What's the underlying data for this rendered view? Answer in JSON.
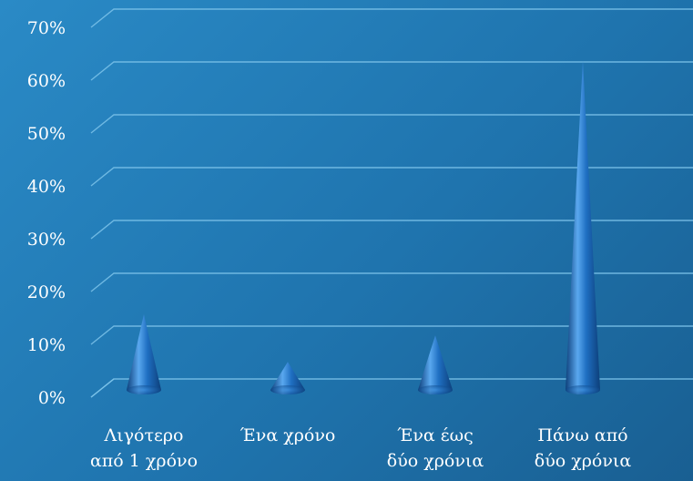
{
  "chart_data": {
    "type": "bar",
    "shape": "cone",
    "categories": [
      [
        "Λιγότερο",
        "από 1 χρόνο"
      ],
      [
        "Ένα χρόνο"
      ],
      [
        "Ένα έως",
        "δύο χρόνια"
      ],
      [
        "Πάνω από",
        "δύο χρόνια"
      ]
    ],
    "values": [
      15,
      6,
      11,
      63
    ],
    "ylim": [
      0,
      70
    ],
    "yticks": [
      "0%",
      "10%",
      "20%",
      "30%",
      "40%",
      "50%",
      "60%",
      "70%"
    ],
    "grid": true,
    "legend": "none",
    "colors": {
      "bar": "#1f6fc2",
      "bar_light": "#5aa8ef",
      "bar_dark": "#0d3f7a",
      "grid": "#7cc3ea",
      "text": "#ffffff"
    }
  }
}
